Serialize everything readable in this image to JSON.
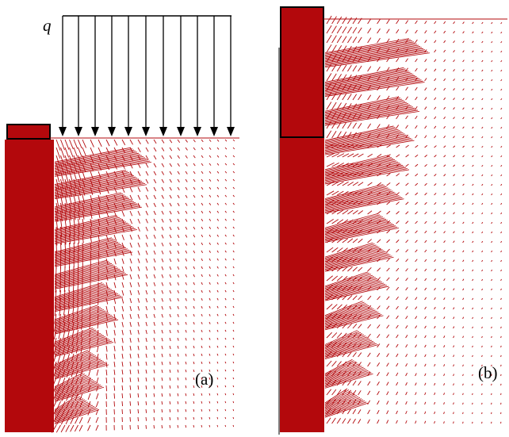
{
  "figure": {
    "load_symbol": "q",
    "panel_a_label": "(a)",
    "panel_b_label": "(b)"
  },
  "colors": {
    "vector_red": "#b3080c",
    "outline_black": "#000000",
    "background": "#ffffff"
  },
  "panels": [
    {
      "id": "a",
      "description_key": "uniform-load-with-footing"
    },
    {
      "id": "b",
      "description_key": "tall-column-footing"
    }
  ]
}
